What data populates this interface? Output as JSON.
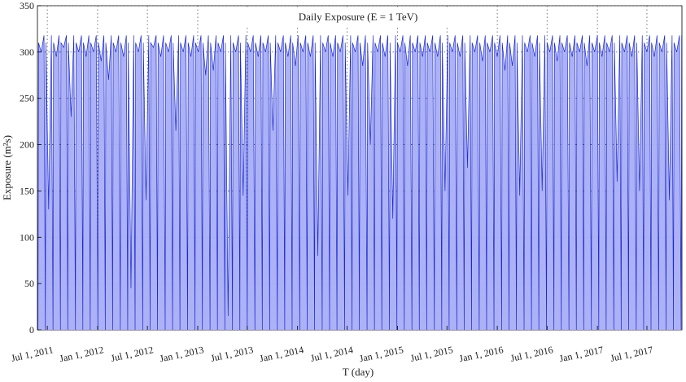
{
  "chart_data": {
    "type": "area",
    "title": "Daily Exposure  (E = 1 TeV)",
    "x_label": "T (day)",
    "y_label": "Exposure  (m²s)",
    "xlim": [
      -36,
      2320
    ],
    "ylim": [
      0,
      350
    ],
    "yticks": [
      0,
      50,
      100,
      150,
      200,
      250,
      300,
      350
    ],
    "xticks": [
      {
        "value": 0,
        "label": "Jul 1, 2011"
      },
      {
        "value": 184,
        "label": "Jan 1, 2012"
      },
      {
        "value": 366,
        "label": "Jul 1, 2012"
      },
      {
        "value": 550,
        "label": "Jan 1, 2013"
      },
      {
        "value": 731,
        "label": "Jul 1, 2013"
      },
      {
        "value": 915,
        "label": "Jan 1, 2014"
      },
      {
        "value": 1096,
        "label": "Jul 1, 2014"
      },
      {
        "value": 1280,
        "label": "Jan 1, 2015"
      },
      {
        "value": 1461,
        "label": "Jul 1, 2015"
      },
      {
        "value": 1645,
        "label": "Jan 1, 2016"
      },
      {
        "value": 1827,
        "label": "Jul 1, 2016"
      },
      {
        "value": 2011,
        "label": "Jan 1, 2017"
      },
      {
        "value": 2192,
        "label": "Jul 1, 2017"
      }
    ],
    "grid": true,
    "color": "#a9aef7",
    "line_color": "#1a2ad0",
    "x": [
      -34,
      -32,
      -22,
      -12,
      -7,
      -5,
      5,
      15,
      21,
      23,
      33,
      43,
      48,
      50,
      60,
      70,
      75,
      77,
      87,
      97,
      103,
      105,
      115,
      125,
      130,
      132,
      142,
      152,
      157,
      159,
      169,
      179,
      185,
      187,
      197,
      207,
      212,
      214,
      224,
      234,
      239,
      241,
      251,
      261,
      267,
      269,
      279,
      289,
      294,
      296,
      306,
      316,
      321,
      323,
      333,
      343,
      349,
      351,
      361,
      371,
      376,
      378,
      388,
      398,
      403,
      405,
      415,
      425,
      431,
      433,
      443,
      453,
      458,
      460,
      470,
      480,
      485,
      487,
      497,
      507,
      513,
      515,
      525,
      535,
      540,
      542,
      552,
      562,
      567,
      569,
      579,
      589,
      595,
      597,
      607,
      617,
      622,
      624,
      634,
      644,
      649,
      651,
      661,
      671,
      677,
      679,
      689,
      699,
      704,
      706,
      716,
      726,
      731,
      733,
      743,
      753,
      759,
      761,
      771,
      781,
      786,
      788,
      798,
      808,
      813,
      815,
      825,
      835,
      841,
      843,
      853,
      863,
      868,
      870,
      880,
      890,
      895,
      897,
      907,
      917,
      923,
      925,
      935,
      945,
      950,
      952,
      962,
      972,
      977,
      979,
      989,
      999,
      1005,
      1007,
      1017,
      1027,
      1032,
      1034,
      1044,
      1054,
      1059,
      1061,
      1071,
      1081,
      1087,
      1089,
      1099,
      1109,
      1114,
      1116,
      1126,
      1136,
      1141,
      1143,
      1153,
      1163,
      1169,
      1171,
      1181,
      1191,
      1196,
      1198,
      1208,
      1218,
      1223,
      1225,
      1235,
      1245,
      1251,
      1253,
      1263,
      1273,
      1278,
      1280,
      1290,
      1300,
      1305,
      1307,
      1317,
      1327,
      1333,
      1335,
      1345,
      1355,
      1360,
      1362,
      1372,
      1382,
      1387,
      1389,
      1399,
      1409,
      1415,
      1417,
      1427,
      1437,
      1442,
      1444,
      1454,
      1464,
      1469,
      1471,
      1481,
      1491,
      1497,
      1499,
      1509,
      1519,
      1524,
      1526,
      1536,
      1546,
      1551,
      1553,
      1563,
      1573,
      1579,
      1581,
      1591,
      1601,
      1606,
      1608,
      1618,
      1628,
      1633,
      1635,
      1645,
      1655,
      1661,
      1663,
      1673,
      1683,
      1688,
      1690,
      1700,
      1710,
      1715,
      1717,
      1727,
      1737,
      1743,
      1745,
      1755,
      1765,
      1770,
      1772,
      1782,
      1792,
      1797,
      1799,
      1809,
      1819,
      1825,
      1827,
      1837,
      1847,
      1852,
      1854,
      1864,
      1874,
      1879,
      1881,
      1891,
      1901,
      1907,
      1909,
      1919,
      1929,
      1934,
      1936,
      1946,
      1956,
      1961,
      1963,
      1973,
      1983,
      1989,
      1991,
      2001,
      2011,
      2016,
      2018,
      2028,
      2038,
      2043,
      2045,
      2055,
      2065,
      2071,
      2073,
      2083,
      2093,
      2098,
      2100,
      2110,
      2120,
      2125,
      2127,
      2137,
      2147,
      2153,
      2155,
      2165,
      2175,
      2180,
      2182,
      2192,
      2202,
      2207,
      2209,
      2219,
      2229,
      2235,
      2237,
      2247,
      2257,
      2262,
      2264,
      2274,
      2284,
      2289,
      2291,
      2301,
      2311,
      2317,
      2319
    ],
    "values": [
      0,
      310,
      300,
      318,
      0,
      310,
      130,
      318,
      0,
      310,
      295,
      318,
      0,
      310,
      305,
      318,
      0,
      310,
      230,
      318,
      0,
      310,
      300,
      318,
      0,
      310,
      295,
      318,
      0,
      310,
      300,
      318,
      0,
      310,
      290,
      318,
      0,
      310,
      270,
      318,
      0,
      310,
      300,
      318,
      0,
      310,
      295,
      318,
      0,
      310,
      45,
      318,
      0,
      310,
      300,
      318,
      0,
      310,
      140,
      318,
      0,
      310,
      305,
      318,
      0,
      310,
      295,
      318,
      0,
      310,
      300,
      318,
      0,
      310,
      215,
      318,
      0,
      310,
      300,
      318,
      0,
      310,
      295,
      318,
      0,
      310,
      300,
      318,
      0,
      310,
      275,
      318,
      0,
      310,
      280,
      318,
      0,
      310,
      300,
      318,
      0,
      310,
      15,
      318,
      0,
      310,
      300,
      318,
      0,
      310,
      145,
      318,
      0,
      310,
      300,
      318,
      0,
      310,
      295,
      318,
      0,
      310,
      300,
      318,
      0,
      310,
      215,
      318,
      0,
      310,
      300,
      318,
      0,
      310,
      295,
      318,
      0,
      310,
      285,
      318,
      0,
      310,
      300,
      318,
      0,
      310,
      295,
      318,
      0,
      310,
      80,
      318,
      0,
      310,
      300,
      318,
      0,
      310,
      295,
      318,
      0,
      310,
      300,
      318,
      0,
      310,
      145,
      318,
      0,
      310,
      300,
      318,
      0,
      310,
      285,
      318,
      0,
      310,
      200,
      318,
      0,
      310,
      300,
      318,
      0,
      310,
      295,
      318,
      0,
      310,
      120,
      318,
      0,
      310,
      300,
      318,
      0,
      310,
      285,
      318,
      0,
      310,
      300,
      318,
      0,
      310,
      295,
      318,
      0,
      310,
      300,
      318,
      0,
      310,
      295,
      318,
      0,
      310,
      150,
      318,
      0,
      310,
      300,
      318,
      0,
      310,
      295,
      318,
      0,
      310,
      175,
      318,
      0,
      310,
      300,
      318,
      0,
      310,
      290,
      318,
      0,
      310,
      300,
      318,
      0,
      310,
      295,
      318,
      0,
      310,
      280,
      318,
      0,
      310,
      285,
      318,
      0,
      310,
      145,
      318,
      0,
      310,
      300,
      318,
      0,
      310,
      295,
      318,
      0,
      310,
      150,
      318,
      0,
      310,
      300,
      318,
      0,
      310,
      290,
      318,
      0,
      310,
      300,
      318,
      0,
      310,
      295,
      318,
      0,
      310,
      300,
      318,
      0,
      310,
      285,
      318,
      0,
      310,
      300,
      318,
      0,
      310,
      295,
      318,
      0,
      310,
      300,
      318,
      0,
      310,
      160,
      318,
      0,
      310,
      300,
      318,
      0,
      310,
      295,
      318,
      0,
      310,
      150,
      318,
      0,
      310,
      300,
      318,
      0,
      310,
      295,
      318,
      0,
      310,
      300,
      318,
      0,
      310,
      140,
      318,
      0,
      310,
      300,
      318,
      0,
      318
    ]
  }
}
